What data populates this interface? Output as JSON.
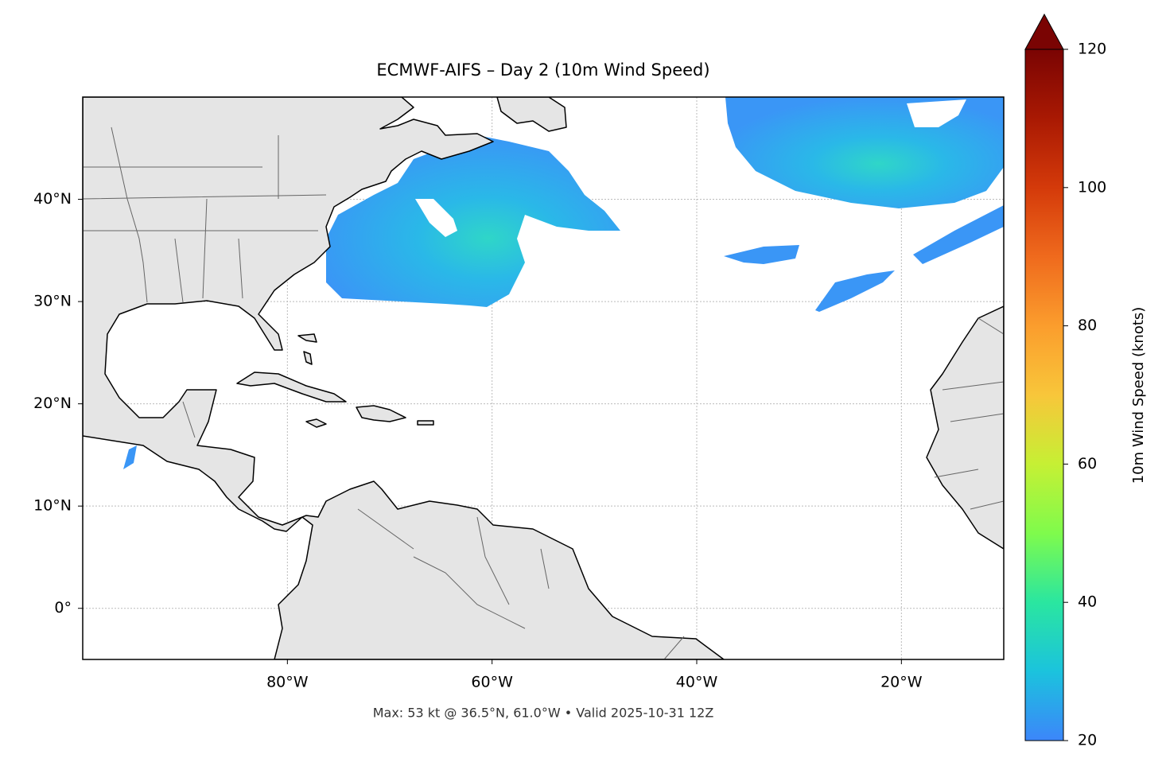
{
  "map_data": {
    "title": "ECMWF-AIFS – Day 2 (10m Wind Speed)",
    "footnote": "Max: 53 kt @ 36.5°N, 61.0°W • Valid 2025-10-31 12Z",
    "xlim": [
      -100,
      -10
    ],
    "ylim": [
      -5,
      50
    ],
    "xticks": [
      {
        "value": -80,
        "label": "80°W"
      },
      {
        "value": -60,
        "label": "60°W"
      },
      {
        "value": -40,
        "label": "40°W"
      },
      {
        "value": -20,
        "label": "20°W"
      }
    ],
    "yticks": [
      {
        "value": 0,
        "label": "0°"
      },
      {
        "value": 10,
        "label": "10°N"
      },
      {
        "value": 20,
        "label": "20°N"
      },
      {
        "value": 30,
        "label": "30°N"
      },
      {
        "value": 40,
        "label": "40°N"
      }
    ],
    "grid": true,
    "colorbar": {
      "label": "10m Wind Speed (knots)",
      "lim": [
        20,
        120
      ],
      "ticks": [
        20,
        40,
        60,
        80,
        100,
        120
      ],
      "colors": [
        "#3c86fa",
        "#1bc3dd",
        "#2ae6a0",
        "#7ffb4c",
        "#c6f034",
        "#f8c63a",
        "#fb9d2d",
        "#ef6a1d",
        "#d43a0a",
        "#a91903",
        "#7a0403"
      ]
    }
  }
}
